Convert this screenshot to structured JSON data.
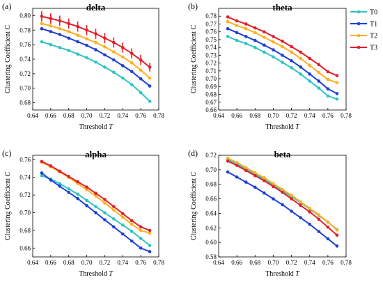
{
  "figure": {
    "legend": {
      "placement": "top-right",
      "entries": [
        {
          "name": "T0",
          "color": "#2ec4c4"
        },
        {
          "name": "T1",
          "color": "#1f3fd6"
        },
        {
          "name": "T2",
          "color": "#ffb020"
        },
        {
          "name": "T3",
          "color": "#e0202a"
        }
      ]
    }
  },
  "chart_data": [
    {
      "type": "line",
      "letter": "(a)",
      "title": "delta",
      "xlabel": "Threshold",
      "xlabel_var": "T",
      "ylabel": "Clustering Coefficient",
      "ylabel_var": "C",
      "xlim": [
        0.64,
        0.78
      ],
      "ylim": [
        0.67,
        0.81
      ],
      "xticks": [
        "0.64",
        "0.66",
        "0.68",
        "0.70",
        "0.72",
        "0.74",
        "0.76",
        "0.78"
      ],
      "yticks": [
        "0.68",
        "0.70",
        "0.72",
        "0.74",
        "0.76",
        "0.78",
        "0.80"
      ],
      "grid": false,
      "x": [
        0.65,
        0.66,
        0.67,
        0.68,
        0.69,
        0.7,
        0.71,
        0.72,
        0.73,
        0.74,
        0.75,
        0.76,
        0.77
      ],
      "series": [
        {
          "name": "T0",
          "values": [
            0.764,
            0.76,
            0.756,
            0.752,
            0.747,
            0.742,
            0.736,
            0.729,
            0.722,
            0.714,
            0.705,
            0.694,
            0.682
          ]
        },
        {
          "name": "T1",
          "values": [
            0.782,
            0.778,
            0.774,
            0.769,
            0.764,
            0.759,
            0.753,
            0.746,
            0.739,
            0.731,
            0.723,
            0.713,
            0.703
          ]
        },
        {
          "name": "T2",
          "values": [
            0.789,
            0.786,
            0.782,
            0.778,
            0.773,
            0.768,
            0.763,
            0.757,
            0.75,
            0.743,
            0.735,
            0.725,
            0.714
          ]
        },
        {
          "name": "T3",
          "values": [
            0.799,
            0.796,
            0.793,
            0.789,
            0.785,
            0.78,
            0.775,
            0.769,
            0.763,
            0.756,
            0.748,
            0.739,
            0.729
          ],
          "errors": [
            0.007,
            0.007,
            0.007,
            0.007,
            0.007,
            0.007,
            0.007,
            0.007,
            0.007,
            0.007,
            0.007,
            0.007,
            0.006
          ]
        }
      ]
    },
    {
      "type": "line",
      "letter": "(b)",
      "title": "theta",
      "xlabel": "Threshold",
      "xlabel_var": "T",
      "ylabel": "Clustering Coefficient",
      "ylabel_var": "C",
      "xlim": [
        0.64,
        0.78
      ],
      "ylim": [
        0.66,
        0.79
      ],
      "xticks": [
        "0.64",
        "0.66",
        "0.68",
        "0.70",
        "0.72",
        "0.74",
        "0.76",
        "0.78"
      ],
      "yticks": [
        "0.66",
        "0.67",
        "0.68",
        "0.69",
        "0.70",
        "0.71",
        "0.72",
        "0.73",
        "0.74",
        "0.75",
        "0.76",
        "0.77",
        "0.78"
      ],
      "grid": false,
      "x": [
        0.65,
        0.66,
        0.67,
        0.68,
        0.69,
        0.7,
        0.71,
        0.72,
        0.73,
        0.74,
        0.75,
        0.76,
        0.77
      ],
      "series": [
        {
          "name": "T0",
          "values": [
            0.754,
            0.749,
            0.745,
            0.74,
            0.734,
            0.728,
            0.721,
            0.714,
            0.706,
            0.697,
            0.688,
            0.678,
            0.674
          ]
        },
        {
          "name": "T1",
          "values": [
            0.764,
            0.759,
            0.754,
            0.749,
            0.743,
            0.737,
            0.73,
            0.723,
            0.715,
            0.706,
            0.697,
            0.687,
            0.681
          ]
        },
        {
          "name": "T2",
          "values": [
            0.773,
            0.768,
            0.764,
            0.759,
            0.753,
            0.747,
            0.741,
            0.734,
            0.726,
            0.717,
            0.708,
            0.699,
            0.695
          ]
        },
        {
          "name": "T3",
          "values": [
            0.779,
            0.774,
            0.77,
            0.765,
            0.76,
            0.754,
            0.748,
            0.741,
            0.734,
            0.726,
            0.718,
            0.709,
            0.704
          ]
        }
      ]
    },
    {
      "type": "line",
      "letter": "(c)",
      "title": "alpha",
      "xlabel": "Threshold",
      "xlabel_var": "T",
      "ylabel": "Clustering Coefficient",
      "ylabel_var": "C",
      "xlim": [
        0.64,
        0.78
      ],
      "ylim": [
        0.65,
        0.765
      ],
      "xticks": [
        "0.64",
        "0.66",
        "0.68",
        "0.70",
        "0.72",
        "0.74",
        "0.76",
        "0.78"
      ],
      "yticks": [
        "0.66",
        "0.68",
        "0.70",
        "0.72",
        "0.74",
        "0.76"
      ],
      "grid": false,
      "x": [
        0.65,
        0.66,
        0.67,
        0.68,
        0.69,
        0.7,
        0.71,
        0.72,
        0.73,
        0.74,
        0.75,
        0.76,
        0.77
      ],
      "series": [
        {
          "name": "T0",
          "values": [
            0.742,
            0.738,
            0.733,
            0.727,
            0.721,
            0.714,
            0.707,
            0.7,
            0.693,
            0.686,
            0.679,
            0.671,
            0.663
          ]
        },
        {
          "name": "T1",
          "values": [
            0.745,
            0.737,
            0.73,
            0.723,
            0.716,
            0.708,
            0.7,
            0.692,
            0.684,
            0.676,
            0.668,
            0.66,
            0.656
          ]
        },
        {
          "name": "T2",
          "values": [
            0.757,
            0.752,
            0.746,
            0.74,
            0.733,
            0.726,
            0.719,
            0.711,
            0.703,
            0.695,
            0.687,
            0.68,
            0.677
          ]
        },
        {
          "name": "T3",
          "values": [
            0.758,
            0.753,
            0.747,
            0.741,
            0.735,
            0.729,
            0.722,
            0.715,
            0.707,
            0.699,
            0.691,
            0.684,
            0.68
          ]
        }
      ]
    },
    {
      "type": "line",
      "letter": "(d)",
      "title": "beta",
      "xlabel": "Threshold",
      "xlabel_var": "T",
      "ylabel": "Clustering Coefficient",
      "ylabel_var": "C",
      "xlim": [
        0.64,
        0.78
      ],
      "ylim": [
        0.58,
        0.72
      ],
      "xticks": [
        "0.64",
        "0.66",
        "0.68",
        "0.70",
        "0.72",
        "0.74",
        "0.76",
        "0.78"
      ],
      "yticks": [
        "0.58",
        "0.60",
        "0.62",
        "0.64",
        "0.66",
        "0.68",
        "0.70",
        "0.72"
      ],
      "grid": false,
      "x": [
        0.65,
        0.66,
        0.67,
        0.68,
        0.69,
        0.7,
        0.71,
        0.72,
        0.73,
        0.74,
        0.75,
        0.76,
        0.77
      ],
      "series": [
        {
          "name": "T0",
          "values": [
            0.714,
            0.708,
            0.701,
            0.694,
            0.687,
            0.679,
            0.671,
            0.663,
            0.655,
            0.646,
            0.637,
            0.628,
            0.618
          ]
        },
        {
          "name": "T1",
          "values": [
            0.697,
            0.69,
            0.683,
            0.676,
            0.668,
            0.66,
            0.652,
            0.643,
            0.634,
            0.625,
            0.615,
            0.605,
            0.595
          ]
        },
        {
          "name": "T2",
          "values": [
            0.716,
            0.71,
            0.703,
            0.696,
            0.689,
            0.681,
            0.673,
            0.665,
            0.656,
            0.647,
            0.638,
            0.628,
            0.617
          ]
        },
        {
          "name": "T3",
          "values": [
            0.712,
            0.706,
            0.699,
            0.692,
            0.685,
            0.677,
            0.669,
            0.66,
            0.651,
            0.642,
            0.632,
            0.621,
            0.61
          ]
        }
      ]
    }
  ]
}
